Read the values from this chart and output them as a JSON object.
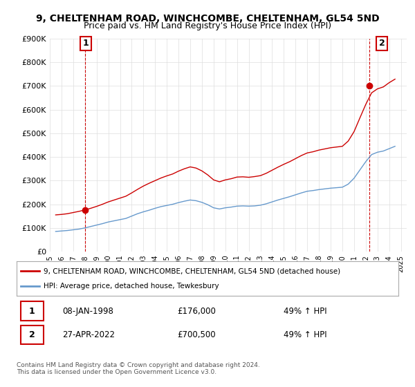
{
  "title": "9, CHELTENHAM ROAD, WINCHCOMBE, CHELTENHAM, GL54 5ND",
  "subtitle": "Price paid vs. HM Land Registry's House Price Index (HPI)",
  "ylabel": "",
  "ylim": [
    0,
    900000
  ],
  "yticks": [
    0,
    100000,
    200000,
    300000,
    400000,
    500000,
    600000,
    700000,
    800000,
    900000
  ],
  "ytick_labels": [
    "£0",
    "£100K",
    "£200K",
    "£300K",
    "£400K",
    "£500K",
    "£600K",
    "£700K",
    "£800K",
    "£900K"
  ],
  "xlim_start": 1995.5,
  "xlim_end": 2025.5,
  "xticks": [
    1995,
    1996,
    1997,
    1998,
    1999,
    2000,
    2001,
    2002,
    2003,
    2004,
    2005,
    2006,
    2007,
    2008,
    2009,
    2010,
    2011,
    2012,
    2013,
    2014,
    2015,
    2016,
    2017,
    2018,
    2019,
    2020,
    2021,
    2022,
    2023,
    2024,
    2025
  ],
  "property_color": "#cc0000",
  "hpi_color": "#6699cc",
  "marker1_color": "#cc0000",
  "marker2_color": "#cc0000",
  "purchase1_year": 1998.03,
  "purchase1_price": 176000,
  "purchase2_year": 2022.32,
  "purchase2_price": 700500,
  "legend_property": "9, CHELTENHAM ROAD, WINCHCOMBE, CHELTENHAM, GL54 5ND (detached house)",
  "legend_hpi": "HPI: Average price, detached house, Tewkesbury",
  "annotation1_label": "1",
  "annotation2_label": "2",
  "table_row1": [
    "1",
    "08-JAN-1998",
    "£176,000",
    "49% ↑ HPI"
  ],
  "table_row2": [
    "2",
    "27-APR-2022",
    "£700,500",
    "49% ↑ HPI"
  ],
  "footer": "Contains HM Land Registry data © Crown copyright and database right 2024.\nThis data is licensed under the Open Government Licence v3.0.",
  "background_color": "#ffffff",
  "grid_color": "#dddddd",
  "title_fontsize": 10,
  "subtitle_fontsize": 9,
  "vline_color": "#cc0000",
  "hpi_data_x": [
    1995.5,
    1996.0,
    1996.5,
    1997.0,
    1997.5,
    1998.0,
    1998.5,
    1999.0,
    1999.5,
    2000.0,
    2000.5,
    2001.0,
    2001.5,
    2002.0,
    2002.5,
    2003.0,
    2003.5,
    2004.0,
    2004.5,
    2005.0,
    2005.5,
    2006.0,
    2006.5,
    2007.0,
    2007.5,
    2008.0,
    2008.5,
    2009.0,
    2009.5,
    2010.0,
    2010.5,
    2011.0,
    2011.5,
    2012.0,
    2012.5,
    2013.0,
    2013.5,
    2014.0,
    2014.5,
    2015.0,
    2015.5,
    2016.0,
    2016.5,
    2017.0,
    2017.5,
    2018.0,
    2018.5,
    2019.0,
    2019.5,
    2020.0,
    2020.5,
    2021.0,
    2021.5,
    2022.0,
    2022.5,
    2023.0,
    2023.5,
    2024.0,
    2024.5
  ],
  "hpi_data_y": [
    85000,
    87000,
    89000,
    92000,
    95000,
    100000,
    106000,
    112000,
    118000,
    125000,
    130000,
    135000,
    140000,
    150000,
    160000,
    168000,
    175000,
    183000,
    190000,
    195000,
    200000,
    207000,
    213000,
    218000,
    215000,
    208000,
    198000,
    185000,
    180000,
    185000,
    188000,
    192000,
    193000,
    192000,
    193000,
    196000,
    202000,
    210000,
    218000,
    225000,
    232000,
    240000,
    248000,
    255000,
    258000,
    262000,
    265000,
    268000,
    270000,
    272000,
    285000,
    310000,
    345000,
    380000,
    410000,
    420000,
    425000,
    435000,
    445000
  ],
  "prop_data_x": [
    1995.5,
    1996.0,
    1996.5,
    1997.0,
    1997.5,
    1998.0,
    1998.5,
    1999.0,
    1999.5,
    2000.0,
    2000.5,
    2001.0,
    2001.5,
    2002.0,
    2002.5,
    2003.0,
    2003.5,
    2004.0,
    2004.5,
    2005.0,
    2005.5,
    2006.0,
    2006.5,
    2007.0,
    2007.5,
    2008.0,
    2008.5,
    2009.0,
    2009.5,
    2010.0,
    2010.5,
    2011.0,
    2011.5,
    2012.0,
    2012.5,
    2013.0,
    2013.5,
    2014.0,
    2014.5,
    2015.0,
    2015.5,
    2016.0,
    2016.5,
    2017.0,
    2017.5,
    2018.0,
    2018.5,
    2019.0,
    2019.5,
    2020.0,
    2020.5,
    2021.0,
    2021.5,
    2022.0,
    2022.5,
    2023.0,
    2023.5,
    2024.0,
    2024.5
  ],
  "prop_data_y": [
    155000,
    157000,
    160000,
    165000,
    170000,
    176000,
    183000,
    191000,
    200000,
    210000,
    218000,
    226000,
    234000,
    248000,
    263000,
    277000,
    289000,
    300000,
    311000,
    320000,
    328000,
    340000,
    350000,
    358000,
    353000,
    341000,
    324000,
    303000,
    295000,
    303000,
    308000,
    315000,
    316000,
    314000,
    317000,
    321000,
    331000,
    344000,
    357000,
    369000,
    380000,
    393000,
    406000,
    417000,
    422000,
    429000,
    434000,
    439000,
    442000,
    445000,
    467000,
    507000,
    565000,
    622000,
    671000,
    688000,
    696000,
    714000,
    729000
  ]
}
